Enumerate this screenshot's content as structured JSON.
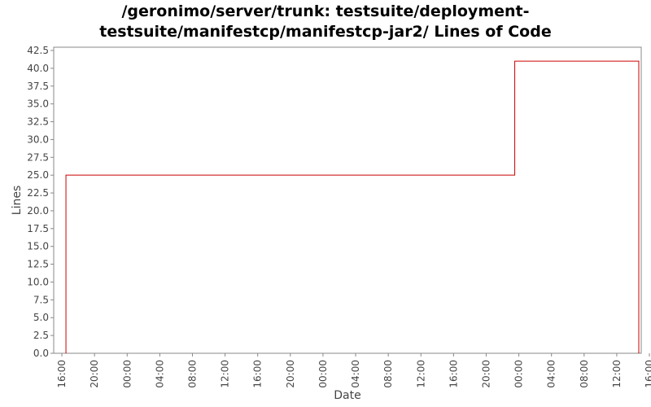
{
  "chart_data": {
    "type": "line",
    "title_lines": [
      "/geronimo/server/trunk: testsuite/deployment-",
      "testsuite/manifestcp/manifestcp-jar2/ Lines of Code"
    ],
    "xlabel": "Date",
    "ylabel": "Lines",
    "ylim": [
      0,
      42.5
    ],
    "y_ticks": [
      "0.0",
      "2.5",
      "5.0",
      "7.5",
      "10.0",
      "12.5",
      "15.0",
      "17.5",
      "20.0",
      "22.5",
      "25.0",
      "27.5",
      "30.0",
      "32.5",
      "35.0",
      "37.5",
      "40.0",
      "42.5"
    ],
    "x_ticks": [
      "16:00",
      "20:00",
      "00:00",
      "04:00",
      "08:00",
      "12:00",
      "16:00",
      "20:00",
      "00:00",
      "04:00",
      "08:00",
      "12:00",
      "16:00",
      "20:00",
      "00:00",
      "04:00",
      "08:00",
      "12:00",
      "16:00"
    ],
    "x_unit": "hours",
    "xlim": [
      -1,
      71
    ],
    "grid": false,
    "series": [
      {
        "color": "#cc0000",
        "step": true,
        "x": [
          0.5,
          0.5,
          55.5,
          55.5,
          70.7,
          70.7
        ],
        "values": [
          0,
          25,
          25,
          41,
          41,
          0
        ]
      }
    ]
  }
}
